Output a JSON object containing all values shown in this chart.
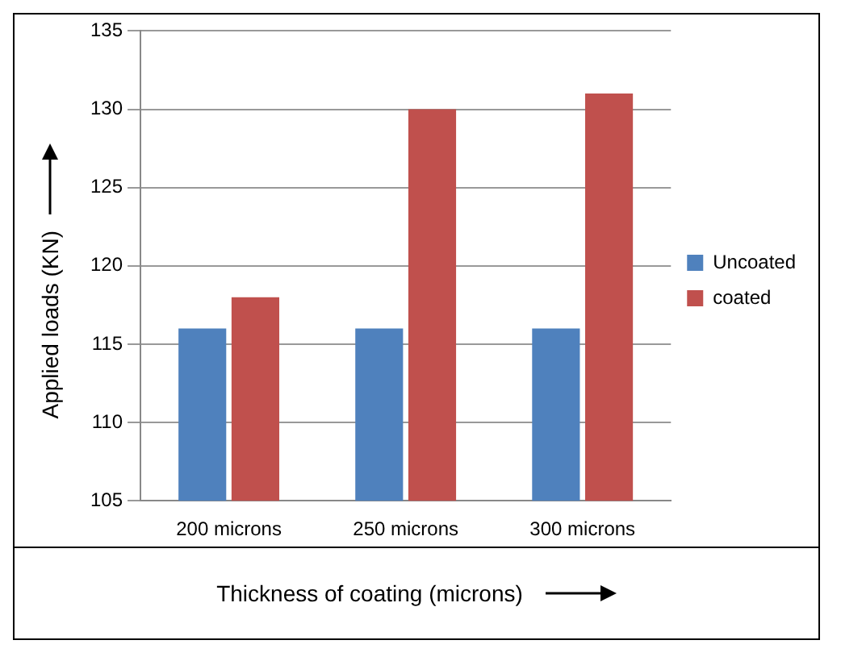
{
  "chart_data": {
    "type": "bar",
    "xlabel": "Thickness of coating (microns)",
    "ylabel": "Applied loads (KN)",
    "categories": [
      "200 microns",
      "250 microns",
      "300 microns"
    ],
    "series": [
      {
        "name": "Uncoated",
        "color": "#4f81bd",
        "values": [
          116,
          116,
          116
        ]
      },
      {
        "name": "coated",
        "color": "#c0504d",
        "values": [
          118,
          130,
          131
        ]
      }
    ],
    "ylim": [
      105,
      135
    ],
    "yticks": [
      105,
      110,
      115,
      120,
      125,
      130,
      135
    ],
    "grid": "y",
    "legend": "right"
  }
}
